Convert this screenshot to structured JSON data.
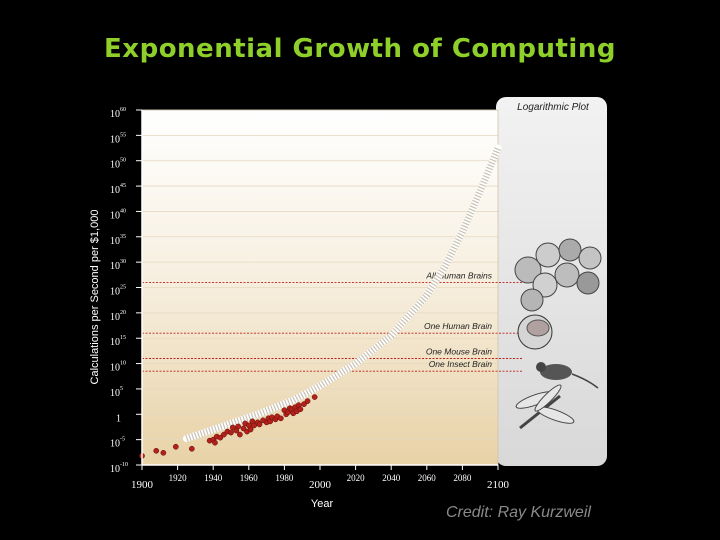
{
  "title": "Exponential Growth of Computing",
  "credit": "Credit: Ray Kurzweil",
  "chart_data": {
    "type": "scatter",
    "title": "Exponential Growth of Computing",
    "xlabel": "Year",
    "ylabel": "Calculations per Second per $1,000",
    "scale_note": "Logarithmic Plot",
    "y_scale": "log",
    "xlim": [
      1900,
      2100
    ],
    "ylim_exponent": [
      -10,
      60
    ],
    "x_ticks": [
      "1900",
      "1920",
      "1940",
      "1960",
      "1980",
      "2000",
      "2020",
      "2040",
      "2060",
      "2080",
      "2100"
    ],
    "x_ticks_bold": [
      "1900",
      "2000",
      "2100"
    ],
    "y_ticks": [
      {
        "base": "10",
        "exp": "60"
      },
      {
        "base": "10",
        "exp": "55"
      },
      {
        "base": "10",
        "exp": "50"
      },
      {
        "base": "10",
        "exp": "45"
      },
      {
        "base": "10",
        "exp": "40"
      },
      {
        "base": "10",
        "exp": "35"
      },
      {
        "base": "10",
        "exp": "30"
      },
      {
        "base": "10",
        "exp": "25"
      },
      {
        "base": "10",
        "exp": "20"
      },
      {
        "base": "10",
        "exp": "15"
      },
      {
        "base": "10",
        "exp": "10"
      },
      {
        "base": "10",
        "exp": "5"
      },
      {
        "base": "1",
        "exp": ""
      },
      {
        "base": "10",
        "exp": "-5"
      },
      {
        "base": "10",
        "exp": "-10"
      }
    ],
    "thresholds": [
      {
        "label": "All Human Brains",
        "exponent": 26,
        "icon": "human-faces-icon"
      },
      {
        "label": "One Human Brain",
        "exponent": 16,
        "icon": "human-head-icon"
      },
      {
        "label": "One Mouse Brain",
        "exponent": 11,
        "icon": "mouse-icon"
      },
      {
        "label": "One Insect Brain",
        "exponent": 8.5,
        "icon": "dragonfly-icon"
      }
    ],
    "series": [
      {
        "type": "scatter",
        "points": [
          {
            "x": 1900,
            "y": -8.2
          },
          {
            "x": 1908,
            "y": -7.2
          },
          {
            "x": 1912,
            "y": -7.6
          },
          {
            "x": 1919,
            "y": -6.4
          },
          {
            "x": 1928,
            "y": -6.8
          },
          {
            "x": 1938,
            "y": -5.2
          },
          {
            "x": 1940,
            "y": -5.0
          },
          {
            "x": 1941,
            "y": -5.6
          },
          {
            "x": 1942,
            "y": -4.4
          },
          {
            "x": 1944,
            "y": -4.6
          },
          {
            "x": 1946,
            "y": -4.0
          },
          {
            "x": 1948,
            "y": -3.4
          },
          {
            "x": 1950,
            "y": -3.6
          },
          {
            "x": 1951,
            "y": -2.6
          },
          {
            "x": 1953,
            "y": -3.2
          },
          {
            "x": 1954,
            "y": -2.4
          },
          {
            "x": 1955,
            "y": -4.0
          },
          {
            "x": 1957,
            "y": -2.8
          },
          {
            "x": 1958,
            "y": -1.8
          },
          {
            "x": 1959,
            "y": -3.4
          },
          {
            "x": 1960,
            "y": -2.2
          },
          {
            "x": 1961,
            "y": -3.0
          },
          {
            "x": 1962,
            "y": -1.4
          },
          {
            "x": 1963,
            "y": -2.2
          },
          {
            "x": 1965,
            "y": -1.6
          },
          {
            "x": 1966,
            "y": -2.0
          },
          {
            "x": 1968,
            "y": -1.2
          },
          {
            "x": 1970,
            "y": -1.6
          },
          {
            "x": 1971,
            "y": -0.8
          },
          {
            "x": 1972,
            "y": -1.4
          },
          {
            "x": 1973,
            "y": -0.6
          },
          {
            "x": 1975,
            "y": -1.0
          },
          {
            "x": 1976,
            "y": -0.4
          },
          {
            "x": 1978,
            "y": -0.8
          },
          {
            "x": 1980,
            "y": 0.8
          },
          {
            "x": 1981,
            "y": 0.0
          },
          {
            "x": 1982,
            "y": 0.4
          },
          {
            "x": 1983,
            "y": 1.2
          },
          {
            "x": 1984,
            "y": 1.0
          },
          {
            "x": 1985,
            "y": 0.2
          },
          {
            "x": 1986,
            "y": 1.4
          },
          {
            "x": 1987,
            "y": 0.6
          },
          {
            "x": 1988,
            "y": 1.8
          },
          {
            "x": 1989,
            "y": 1.0
          },
          {
            "x": 1991,
            "y": 2.0
          },
          {
            "x": 1993,
            "y": 2.6
          },
          {
            "x": 1997,
            "y": 3.4
          }
        ]
      },
      {
        "type": "trend",
        "points": [
          {
            "x": 1925,
            "y": -4.8
          },
          {
            "x": 1945,
            "y": -2.4
          },
          {
            "x": 1965,
            "y": 0.0
          },
          {
            "x": 1985,
            "y": 2.8
          },
          {
            "x": 2000,
            "y": 5.6
          },
          {
            "x": 2020,
            "y": 10.0
          },
          {
            "x": 2040,
            "y": 15.5
          },
          {
            "x": 2060,
            "y": 23.5
          },
          {
            "x": 2070,
            "y": 29.0
          },
          {
            "x": 2080,
            "y": 36.0
          },
          {
            "x": 2090,
            "y": 44.0
          },
          {
            "x": 2100,
            "y": 52.5
          }
        ]
      }
    ]
  }
}
